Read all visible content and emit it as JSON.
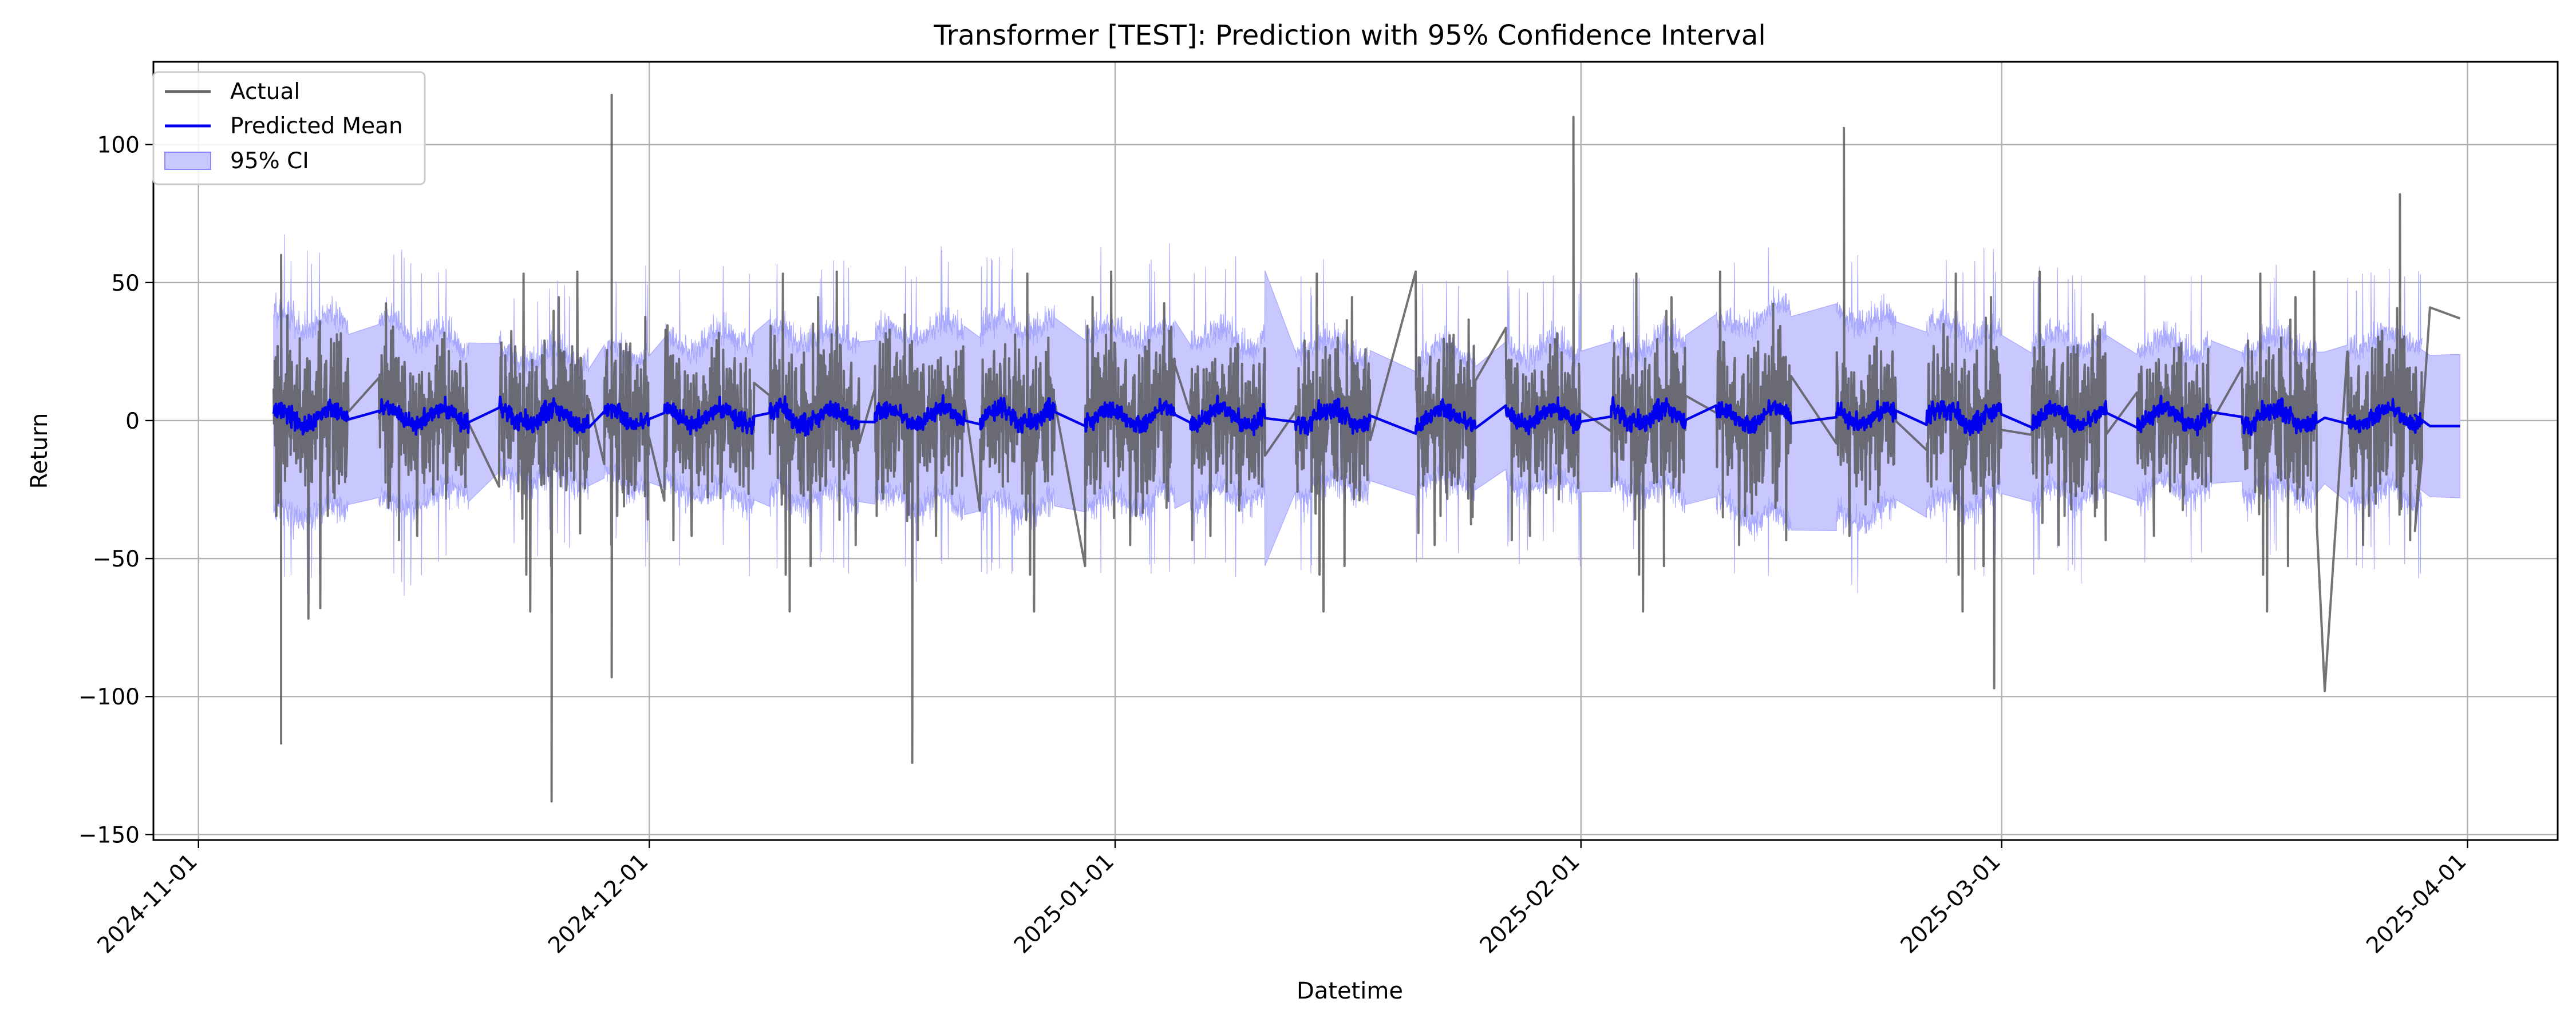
{
  "chart_data": {
    "type": "line",
    "title": "Transformer [TEST]: Prediction with 95% Confidence Interval",
    "xlabel": "Datetime",
    "ylabel": "Return",
    "xlim": [
      "2024-10-29",
      "2025-04-07"
    ],
    "ylim": [
      -152,
      130
    ],
    "x_ticks": [
      "2024-11-01",
      "2024-12-01",
      "2025-01-01",
      "2025-02-01",
      "2025-03-01",
      "2025-04-01"
    ],
    "y_ticks": [
      -150,
      -100,
      -50,
      0,
      50,
      100
    ],
    "grid": true,
    "legend": {
      "placement": "top-left",
      "entries": [
        "Actual",
        "Predicted Mean",
        "95% CI"
      ]
    },
    "colors": {
      "actual": "#666666",
      "predicted": "#0000ee",
      "ci": "#c8c8ff"
    },
    "ci_width": [
      {
        "x": "2024-11-06",
        "half": 32
      },
      {
        "x": "2024-11-14",
        "half": 30
      },
      {
        "x": "2024-11-22",
        "half": 18
      },
      {
        "x": "2024-11-29",
        "half": 20
      },
      {
        "x": "2024-12-07",
        "half": 26
      },
      {
        "x": "2024-12-15",
        "half": 26
      },
      {
        "x": "2024-12-25",
        "half": 30
      },
      {
        "x": "2025-01-07",
        "half": 26
      },
      {
        "x": "2025-01-20",
        "half": 20
      },
      {
        "x": "2025-02-05",
        "half": 22
      },
      {
        "x": "2025-02-15",
        "half": 36
      },
      {
        "x": "2025-03-01",
        "half": 26
      },
      {
        "x": "2025-03-15",
        "half": 22
      },
      {
        "x": "2025-03-31",
        "half": 26
      }
    ],
    "segments": [
      {
        "start": "2024-11-06",
        "end": "2024-11-10"
      },
      {
        "start": "2024-11-13",
        "end": "2024-11-18"
      },
      {
        "start": "2024-11-21",
        "end": "2024-11-26"
      },
      {
        "start": "2024-11-28",
        "end": "2024-11-30"
      },
      {
        "start": "2024-12-02",
        "end": "2024-12-07"
      },
      {
        "start": "2024-12-09",
        "end": "2024-12-14"
      },
      {
        "start": "2024-12-16",
        "end": "2024-12-21"
      },
      {
        "start": "2024-12-23",
        "end": "2024-12-27"
      },
      {
        "start": "2024-12-30",
        "end": "2025-01-04"
      },
      {
        "start": "2025-01-06",
        "end": "2025-01-10"
      },
      {
        "start": "2025-01-13",
        "end": "2025-01-17"
      },
      {
        "start": "2025-01-21",
        "end": "2025-01-24"
      },
      {
        "start": "2025-01-27",
        "end": "2025-01-31"
      },
      {
        "start": "2025-02-03",
        "end": "2025-02-07"
      },
      {
        "start": "2025-02-10",
        "end": "2025-02-14"
      },
      {
        "start": "2025-02-18",
        "end": "2025-02-21"
      },
      {
        "start": "2025-02-24",
        "end": "2025-02-28"
      },
      {
        "start": "2025-03-03",
        "end": "2025-03-07"
      },
      {
        "start": "2025-03-10",
        "end": "2025-03-14"
      },
      {
        "start": "2025-03-17",
        "end": "2025-03-21"
      },
      {
        "start": "2025-03-24",
        "end": "2025-03-28"
      }
    ],
    "tail": [
      {
        "x": "2025-03-28",
        "actual": -40,
        "mean": 2
      },
      {
        "x": "2025-03-29",
        "actual": 41,
        "mean": -2
      },
      {
        "x": "2025-03-31",
        "actual": 37,
        "mean": -2
      }
    ],
    "spikes": [
      {
        "x": "2024-11-06",
        "actual": -117
      },
      {
        "x": "2024-11-06",
        "actual": 60
      },
      {
        "x": "2024-11-24",
        "actual": -138
      },
      {
        "x": "2024-11-28",
        "actual": 118
      },
      {
        "x": "2024-11-28",
        "actual": -93
      },
      {
        "x": "2024-12-18",
        "actual": -124
      },
      {
        "x": "2025-01-31",
        "actual": 110
      },
      {
        "x": "2025-02-18",
        "actual": 106
      },
      {
        "x": "2025-02-28",
        "actual": -97
      },
      {
        "x": "2025-03-22",
        "actual": -98
      },
      {
        "x": "2025-03-27",
        "actual": 82
      }
    ]
  }
}
